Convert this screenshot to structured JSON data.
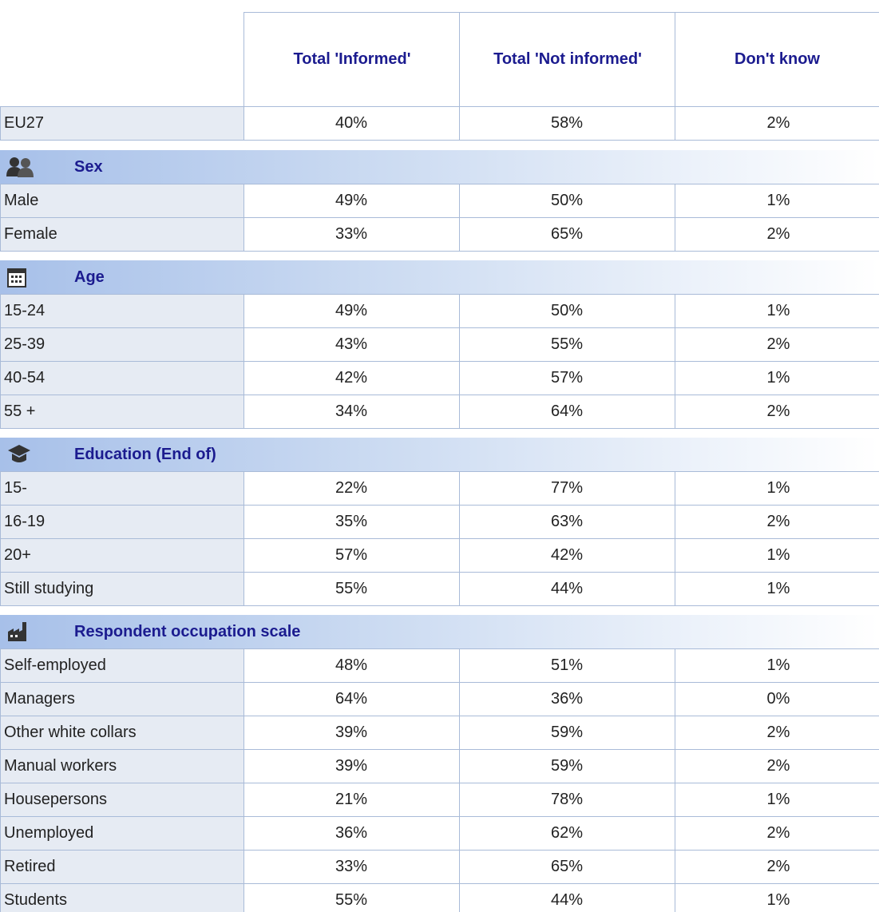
{
  "columns": [
    "Total 'Informed'",
    "Total 'Not informed'",
    "Don't know"
  ],
  "total": {
    "label": "EU27",
    "cells": [
      "40%",
      "58%",
      "2%"
    ]
  },
  "sections": [
    {
      "title": "Sex",
      "rows": [
        {
          "label": "Male",
          "cells": [
            "49%",
            "50%",
            "1%"
          ]
        },
        {
          "label": "Female",
          "cells": [
            "33%",
            "65%",
            "2%"
          ]
        }
      ]
    },
    {
      "title": "Age",
      "rows": [
        {
          "label": "15-24",
          "cells": [
            "49%",
            "50%",
            "1%"
          ]
        },
        {
          "label": "25-39",
          "cells": [
            "43%",
            "55%",
            "2%"
          ]
        },
        {
          "label": "40-54",
          "cells": [
            "42%",
            "57%",
            "1%"
          ]
        },
        {
          "label": "55 +",
          "cells": [
            "34%",
            "64%",
            "2%"
          ]
        }
      ]
    },
    {
      "title": "Education (End of)",
      "rows": [
        {
          "label": "15-",
          "cells": [
            "22%",
            "77%",
            "1%"
          ]
        },
        {
          "label": "16-19",
          "cells": [
            "35%",
            "63%",
            "2%"
          ]
        },
        {
          "label": "20+",
          "cells": [
            "57%",
            "42%",
            "1%"
          ]
        },
        {
          "label": "Still studying",
          "cells": [
            "55%",
            "44%",
            "1%"
          ]
        }
      ]
    },
    {
      "title": "Respondent occupation scale",
      "rows": [
        {
          "label": "Self-employed",
          "cells": [
            "48%",
            "51%",
            "1%"
          ]
        },
        {
          "label": "Managers",
          "cells": [
            "64%",
            "36%",
            "0%"
          ]
        },
        {
          "label": "Other white collars",
          "cells": [
            "39%",
            "59%",
            "2%"
          ]
        },
        {
          "label": "Manual workers",
          "cells": [
            "39%",
            "59%",
            "2%"
          ]
        },
        {
          "label": "Housepersons",
          "cells": [
            "21%",
            "78%",
            "1%"
          ]
        },
        {
          "label": "Unemployed",
          "cells": [
            "36%",
            "62%",
            "2%"
          ]
        },
        {
          "label": "Retired",
          "cells": [
            "33%",
            "65%",
            "2%"
          ]
        },
        {
          "label": "Students",
          "cells": [
            "55%",
            "44%",
            "1%"
          ]
        }
      ]
    }
  ]
}
